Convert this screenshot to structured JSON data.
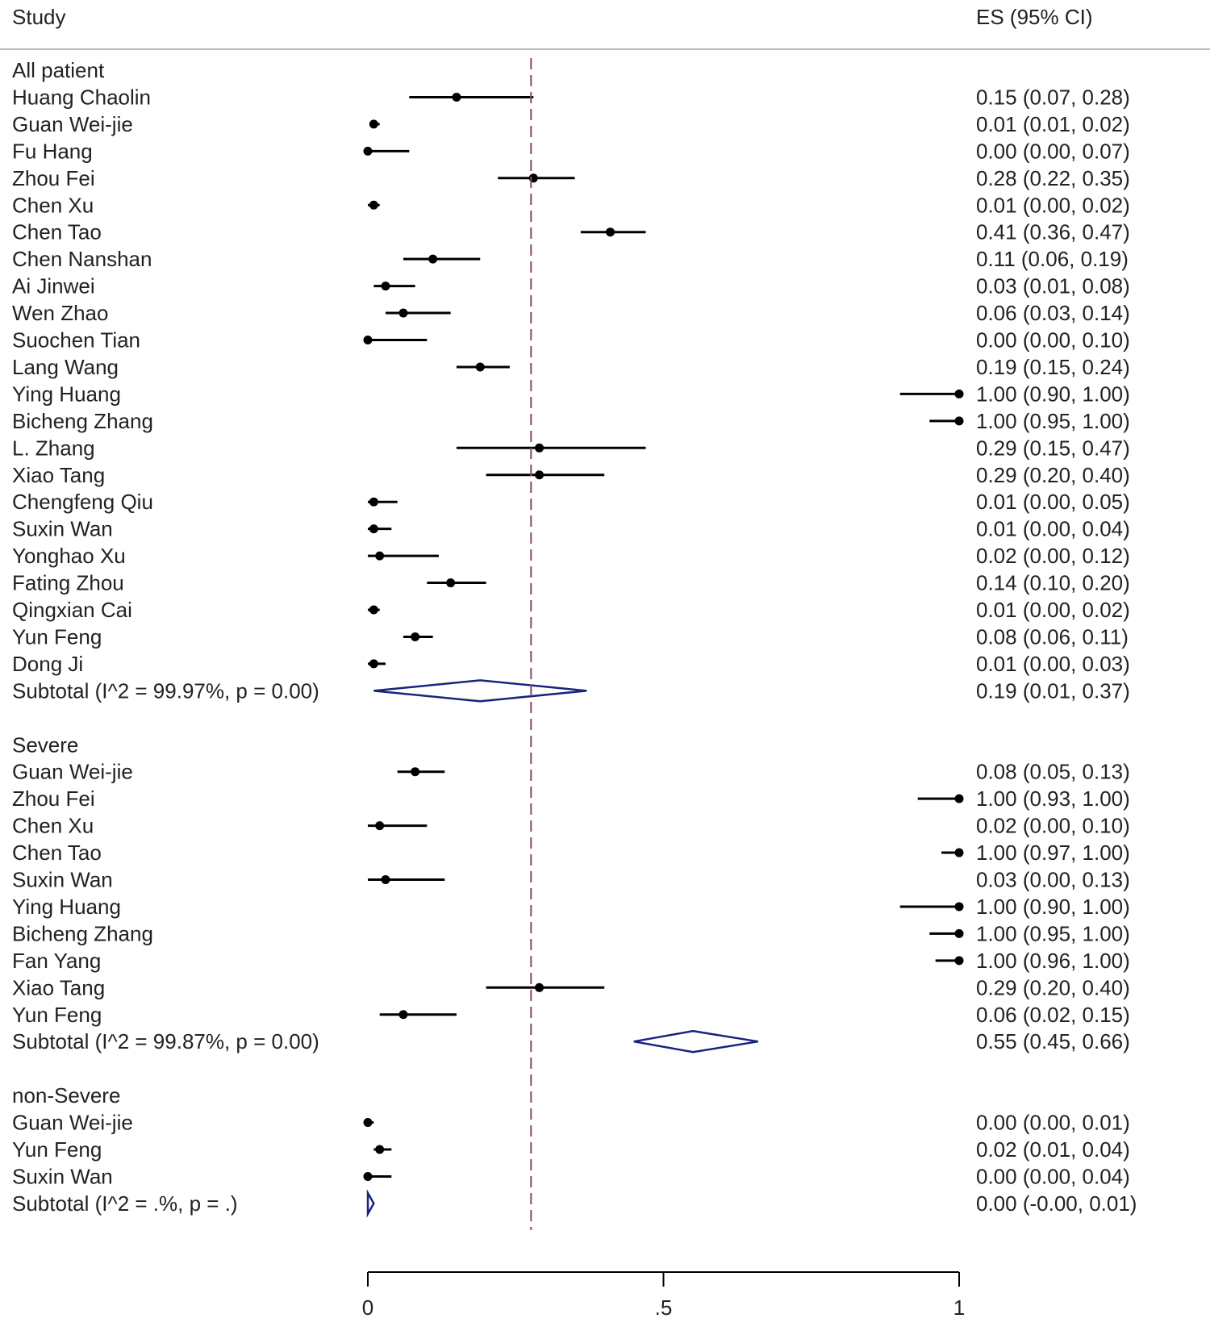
{
  "header": {
    "study_label": "Study",
    "es_label": "ES (95% CI)"
  },
  "chart_data": {
    "type": "forest",
    "xlim": [
      0,
      1
    ],
    "x_ticks": [
      0,
      0.5,
      1
    ],
    "x_tick_labels": [
      "0",
      ".5",
      "1"
    ],
    "overall_effect_line": 0.276,
    "groups": [
      {
        "name": "All patient",
        "studies": [
          {
            "label": "Huang Chaolin",
            "es": 0.15,
            "lo": 0.07,
            "hi": 0.28,
            "text": "0.15 (0.07, 0.28)"
          },
          {
            "label": "Guan Wei-jie",
            "es": 0.01,
            "lo": 0.01,
            "hi": 0.02,
            "text": "0.01 (0.01, 0.02)"
          },
          {
            "label": "Fu Hang",
            "es": 0.0,
            "lo": 0.0,
            "hi": 0.07,
            "text": "0.00 (0.00, 0.07)"
          },
          {
            "label": "Zhou Fei",
            "es": 0.28,
            "lo": 0.22,
            "hi": 0.35,
            "text": "0.28 (0.22, 0.35)"
          },
          {
            "label": "Chen Xu",
            "es": 0.01,
            "lo": 0.0,
            "hi": 0.02,
            "text": "0.01 (0.00, 0.02)"
          },
          {
            "label": "Chen Tao",
            "es": 0.41,
            "lo": 0.36,
            "hi": 0.47,
            "text": "0.41 (0.36, 0.47)"
          },
          {
            "label": "Chen Nanshan",
            "es": 0.11,
            "lo": 0.06,
            "hi": 0.19,
            "text": "0.11 (0.06, 0.19)"
          },
          {
            "label": "Ai Jinwei",
            "es": 0.03,
            "lo": 0.01,
            "hi": 0.08,
            "text": "0.03 (0.01, 0.08)"
          },
          {
            "label": "Wen Zhao",
            "es": 0.06,
            "lo": 0.03,
            "hi": 0.14,
            "text": "0.06 (0.03, 0.14)"
          },
          {
            "label": "Suochen Tian",
            "es": 0.0,
            "lo": 0.0,
            "hi": 0.1,
            "text": "0.00 (0.00, 0.10)"
          },
          {
            "label": "Lang Wang",
            "es": 0.19,
            "lo": 0.15,
            "hi": 0.24,
            "text": "0.19 (0.15, 0.24)"
          },
          {
            "label": "Ying Huang",
            "es": 1.0,
            "lo": 0.9,
            "hi": 1.0,
            "text": "1.00 (0.90, 1.00)"
          },
          {
            "label": "Bicheng Zhang",
            "es": 1.0,
            "lo": 0.95,
            "hi": 1.0,
            "text": "1.00 (0.95, 1.00)"
          },
          {
            "label": "L. Zhang",
            "es": 0.29,
            "lo": 0.15,
            "hi": 0.47,
            "text": "0.29 (0.15, 0.47)"
          },
          {
            "label": "Xiao Tang",
            "es": 0.29,
            "lo": 0.2,
            "hi": 0.4,
            "text": "0.29 (0.20, 0.40)"
          },
          {
            "label": "Chengfeng Qiu",
            "es": 0.01,
            "lo": 0.0,
            "hi": 0.05,
            "text": "0.01 (0.00, 0.05)"
          },
          {
            "label": "Suxin Wan",
            "es": 0.01,
            "lo": 0.0,
            "hi": 0.04,
            "text": "0.01 (0.00, 0.04)"
          },
          {
            "label": "Yonghao Xu",
            "es": 0.02,
            "lo": 0.0,
            "hi": 0.12,
            "text": "0.02 (0.00, 0.12)"
          },
          {
            "label": "Fating Zhou",
            "es": 0.14,
            "lo": 0.1,
            "hi": 0.2,
            "text": "0.14 (0.10, 0.20)"
          },
          {
            "label": "Qingxian Cai",
            "es": 0.01,
            "lo": 0.0,
            "hi": 0.02,
            "text": "0.01 (0.00, 0.02)"
          },
          {
            "label": "Yun Feng",
            "es": 0.08,
            "lo": 0.06,
            "hi": 0.11,
            "text": "0.08 (0.06, 0.11)"
          },
          {
            "label": "Dong Ji",
            "es": 0.01,
            "lo": 0.0,
            "hi": 0.03,
            "text": "0.01 (0.00, 0.03)"
          }
        ],
        "subtotal": {
          "label": "Subtotal  (I^2 = 99.97%, p = 0.00)",
          "es": 0.19,
          "lo": 0.01,
          "hi": 0.37,
          "text": "0.19 (0.01, 0.37)"
        }
      },
      {
        "name": "Severe",
        "studies": [
          {
            "label": "Guan Wei-jie",
            "es": 0.08,
            "lo": 0.05,
            "hi": 0.13,
            "text": "0.08 (0.05, 0.13)"
          },
          {
            "label": "Zhou Fei",
            "es": 1.0,
            "lo": 0.93,
            "hi": 1.0,
            "text": "1.00 (0.93, 1.00)"
          },
          {
            "label": "Chen Xu",
            "es": 0.02,
            "lo": 0.0,
            "hi": 0.1,
            "text": "0.02 (0.00, 0.10)"
          },
          {
            "label": "Chen Tao",
            "es": 1.0,
            "lo": 0.97,
            "hi": 1.0,
            "text": "1.00 (0.97, 1.00)"
          },
          {
            "label": "Suxin Wan",
            "es": 0.03,
            "lo": 0.0,
            "hi": 0.13,
            "text": "0.03 (0.00, 0.13)"
          },
          {
            "label": "Ying Huang",
            "es": 1.0,
            "lo": 0.9,
            "hi": 1.0,
            "text": "1.00 (0.90, 1.00)"
          },
          {
            "label": "Bicheng Zhang",
            "es": 1.0,
            "lo": 0.95,
            "hi": 1.0,
            "text": "1.00 (0.95, 1.00)"
          },
          {
            "label": "Fan Yang",
            "es": 1.0,
            "lo": 0.96,
            "hi": 1.0,
            "text": "1.00 (0.96, 1.00)"
          },
          {
            "label": "Xiao Tang",
            "es": 0.29,
            "lo": 0.2,
            "hi": 0.4,
            "text": "0.29 (0.20, 0.40)"
          },
          {
            "label": "Yun Feng",
            "es": 0.06,
            "lo": 0.02,
            "hi": 0.15,
            "text": "0.06 (0.02, 0.15)"
          }
        ],
        "subtotal": {
          "label": "Subtotal  (I^2 = 99.87%, p = 0.00)",
          "es": 0.55,
          "lo": 0.45,
          "hi": 0.66,
          "text": "0.55 (0.45, 0.66)"
        }
      },
      {
        "name": "non-Severe",
        "studies": [
          {
            "label": "Guan Wei-jie",
            "es": 0.0,
            "lo": 0.0,
            "hi": 0.01,
            "text": "0.00 (0.00, 0.01)"
          },
          {
            "label": "Yun Feng",
            "es": 0.02,
            "lo": 0.01,
            "hi": 0.04,
            "text": "0.02 (0.01, 0.04)"
          },
          {
            "label": "Suxin Wan",
            "es": 0.0,
            "lo": 0.0,
            "hi": 0.04,
            "text": "0.00 (0.00, 0.04)"
          }
        ],
        "subtotal": {
          "label": "Subtotal  (I^2 = .%, p = .)",
          "es": 0.0,
          "lo": -0.0,
          "hi": 0.01,
          "text": "0.00 (-0.00, 0.01)"
        }
      }
    ],
    "colors": {
      "text": "#222222",
      "marker": "#000000",
      "diamond": "#1a237e",
      "reference_line": "#8b4d5a",
      "separator": "#bbbbbb"
    }
  }
}
